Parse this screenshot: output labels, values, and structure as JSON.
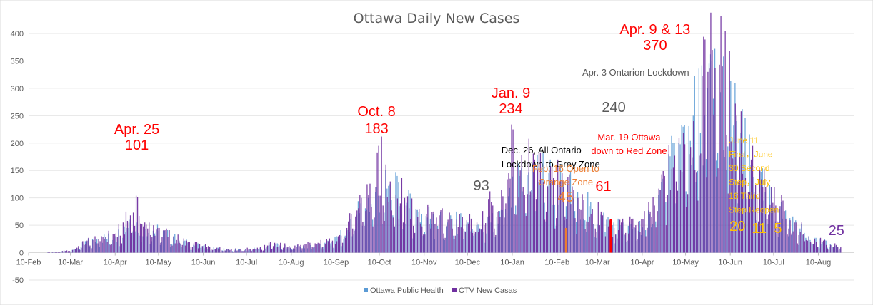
{
  "chart_data": {
    "type": "bar",
    "title": "Ottawa Daily New Cases",
    "xlabel": "",
    "ylabel": "",
    "ylim": [
      -50,
      400
    ],
    "yticks": [
      "400",
      "350",
      "300",
      "250",
      "200",
      "150",
      "100",
      "50",
      "0",
      "-50"
    ],
    "x_start": "2020-02-10",
    "x_end": "2021-08-25",
    "x_tick_labels": [
      "10-Feb",
      "10-Mar",
      "10-Apr",
      "10-May",
      "10-Jun",
      "10-Jul",
      "10-Aug",
      "10-Sep",
      "10-Oct",
      "10-Nov",
      "10-Dec",
      "10-Jan",
      "10-Feb",
      "10-Mar",
      "10-Apr",
      "10-May",
      "10-Jun",
      "10-Jul",
      "10-Aug"
    ],
    "x_tick_dates": [
      "2020-02-10",
      "2020-03-10",
      "2020-04-10",
      "2020-05-10",
      "2020-06-10",
      "2020-07-10",
      "2020-08-10",
      "2020-09-10",
      "2020-10-10",
      "2020-11-10",
      "2020-12-10",
      "2021-01-10",
      "2021-02-10",
      "2021-03-10",
      "2021-04-10",
      "2021-05-10",
      "2021-06-10",
      "2021-07-10",
      "2021-08-10"
    ],
    "grid": true,
    "legend_position": "bottom",
    "series": [
      {
        "name": "Ottawa Public Health",
        "color": "#5b9bd5",
        "values": [
          [
            0,
            0
          ],
          [
            10,
            0
          ],
          [
            20,
            2
          ],
          [
            30,
            5
          ],
          [
            40,
            20
          ],
          [
            50,
            28
          ],
          [
            60,
            30
          ],
          [
            70,
            60
          ],
          [
            80,
            50
          ],
          [
            90,
            40
          ],
          [
            100,
            28
          ],
          [
            110,
            18
          ],
          [
            120,
            12
          ],
          [
            130,
            8
          ],
          [
            140,
            5
          ],
          [
            150,
            6
          ],
          [
            160,
            8
          ],
          [
            170,
            15
          ],
          [
            180,
            10
          ],
          [
            190,
            12
          ],
          [
            200,
            15
          ],
          [
            210,
            20
          ],
          [
            220,
            40
          ],
          [
            230,
            90
          ],
          [
            240,
            110
          ],
          [
            250,
            125
          ],
          [
            260,
            95
          ],
          [
            270,
            75
          ],
          [
            280,
            70
          ],
          [
            290,
            55
          ],
          [
            300,
            60
          ],
          [
            310,
            50
          ],
          [
            320,
            55
          ],
          [
            330,
            80
          ],
          [
            340,
            140
          ],
          [
            350,
            160
          ],
          [
            360,
            145
          ],
          [
            370,
            130
          ],
          [
            380,
            110
          ],
          [
            390,
            75
          ],
          [
            400,
            60
          ],
          [
            410,
            50
          ],
          [
            420,
            45
          ],
          [
            430,
            70
          ],
          [
            440,
            130
          ],
          [
            450,
            200
          ],
          [
            460,
            250
          ],
          [
            470,
            300
          ],
          [
            480,
            320
          ],
          [
            490,
            240
          ],
          [
            500,
            160
          ],
          [
            510,
            110
          ],
          [
            520,
            80
          ],
          [
            530,
            50
          ],
          [
            540,
            30
          ],
          [
            550,
            20
          ],
          [
            560,
            10
          ],
          [
            570,
            8
          ],
          [
            580,
            8
          ],
          [
            590,
            12
          ],
          [
            600,
            15
          ],
          [
            610,
            20
          ]
        ]
      },
      {
        "name": "CTV New Casas",
        "color": "#7030a0",
        "values": [
          [
            0,
            0
          ],
          [
            10,
            0
          ],
          [
            20,
            2
          ],
          [
            30,
            5
          ],
          [
            40,
            22
          ],
          [
            50,
            30
          ],
          [
            60,
            35
          ],
          [
            70,
            68
          ],
          [
            75,
            101
          ],
          [
            80,
            55
          ],
          [
            90,
            45
          ],
          [
            100,
            30
          ],
          [
            110,
            20
          ],
          [
            120,
            12
          ],
          [
            130,
            9
          ],
          [
            140,
            6
          ],
          [
            150,
            7
          ],
          [
            160,
            10
          ],
          [
            170,
            18
          ],
          [
            180,
            12
          ],
          [
            190,
            14
          ],
          [
            200,
            18
          ],
          [
            210,
            22
          ],
          [
            220,
            45
          ],
          [
            230,
            100
          ],
          [
            240,
            120
          ],
          [
            241,
            183
          ],
          [
            250,
            130
          ],
          [
            260,
            100
          ],
          [
            270,
            80
          ],
          [
            280,
            75
          ],
          [
            290,
            60
          ],
          [
            300,
            65
          ],
          [
            310,
            55
          ],
          [
            320,
            93
          ],
          [
            330,
            90
          ],
          [
            334,
            234
          ],
          [
            340,
            150
          ],
          [
            350,
            170
          ],
          [
            360,
            150
          ],
          [
            370,
            120
          ],
          [
            380,
            100
          ],
          [
            390,
            80
          ],
          [
            400,
            60
          ],
          [
            405,
            45
          ],
          [
            410,
            55
          ],
          [
            420,
            50
          ],
          [
            425,
            61
          ],
          [
            430,
            75
          ],
          [
            440,
            140
          ],
          [
            450,
            210
          ],
          [
            460,
            240
          ],
          [
            470,
            330
          ],
          [
            473,
            370
          ],
          [
            480,
            340
          ],
          [
            490,
            250
          ],
          [
            500,
            170
          ],
          [
            510,
            120
          ],
          [
            520,
            85
          ],
          [
            530,
            55
          ],
          [
            540,
            30
          ],
          [
            545,
            20
          ],
          [
            550,
            22
          ],
          [
            560,
            11
          ],
          [
            570,
            5
          ],
          [
            580,
            8
          ],
          [
            590,
            14
          ],
          [
            600,
            18
          ],
          [
            610,
            25
          ]
        ]
      }
    ],
    "annotations": [
      {
        "text_lines": [
          "Apr. 25",
          "101"
        ],
        "date": "2020-04-25",
        "color": "#ff0000"
      },
      {
        "text_lines": [
          "Oct. 8",
          "183"
        ],
        "date": "2020-10-08",
        "color": "#ff0000"
      },
      {
        "text_lines": [
          "Dec. 26, All Ontario",
          "Lockdown to Grey Zone"
        ],
        "date": "2020-12-26",
        "color": "#000000"
      },
      {
        "text_lines": [
          "93"
        ],
        "date": "2020-12-26",
        "color": "#595959"
      },
      {
        "text_lines": [
          "Jan. 9",
          "234"
        ],
        "date": "2021-01-09",
        "color": "#ff0000"
      },
      {
        "text_lines": [
          "Feb. 16 Open to",
          "Orange Zone"
        ],
        "date": "2021-02-16",
        "color": "#ed7d31"
      },
      {
        "text_lines": [
          "45"
        ],
        "date": "2021-02-16",
        "color": "#ed7d31"
      },
      {
        "text_lines": [
          "Mar. 19 Ottawa",
          "down to Red Zone"
        ],
        "date": "2021-03-19",
        "color": "#ff0000"
      },
      {
        "text_lines": [
          "61"
        ],
        "date": "2021-03-19",
        "color": "#ff0000"
      },
      {
        "text_lines": [
          "Apr. 3 Ontarion Lockdown"
        ],
        "date": "2021-04-03",
        "color": "#595959"
      },
      {
        "text_lines": [
          "240"
        ],
        "date": "2021-04-03",
        "color": "#595959"
      },
      {
        "text_lines": [
          "Apr. 9 & 13",
          "370"
        ],
        "date": "2021-04-09",
        "color": "#ff0000"
      },
      {
        "text_lines": [
          "June 11",
          "First，June",
          "30 Second",
          "Step，July",
          "16 Third",
          "Step Reopen"
        ],
        "date": "2021-06-11",
        "color": "#ffc000"
      },
      {
        "text_lines": [
          "20"
        ],
        "date": "2021-06-11",
        "color": "#ffc000"
      },
      {
        "text_lines": [
          "11"
        ],
        "date": "2021-06-30",
        "color": "#ffc000"
      },
      {
        "text_lines": [
          "5"
        ],
        "date": "2021-07-16",
        "color": "#ffc000"
      },
      {
        "text_lines": [
          "25"
        ],
        "date": "2021-08-25",
        "color": "#7030a0"
      }
    ],
    "highlights": [
      {
        "date": "2021-02-16",
        "value": 45,
        "color": "#ed7d31"
      },
      {
        "date": "2021-03-19",
        "value": 61,
        "color": "#ff0000"
      }
    ]
  }
}
